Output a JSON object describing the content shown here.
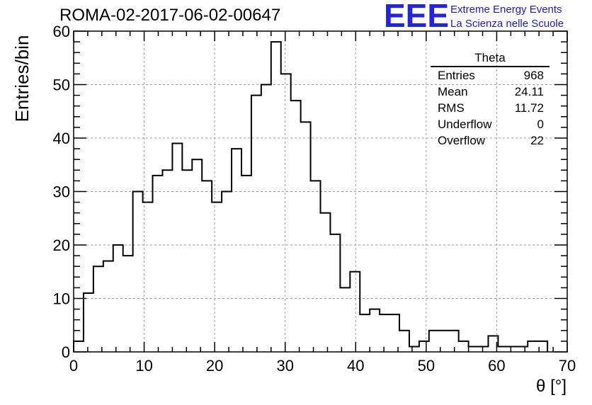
{
  "header": {
    "title": "ROMA-02-2017-06-02-00647",
    "logo_mark": "EEE",
    "logo_line1": "Extreme Energy Events",
    "logo_line2": "La Scienza nelle Scuole"
  },
  "stats": {
    "title": "Theta",
    "rows": [
      {
        "label": "Entries",
        "value": "968"
      },
      {
        "label": "Mean",
        "value": "24.11"
      },
      {
        "label": "RMS",
        "value": "11.72"
      },
      {
        "label": "Underflow",
        "value": "0"
      },
      {
        "label": "Overflow",
        "value": "22"
      }
    ]
  },
  "chart_data": {
    "type": "histogram",
    "xlabel": "θ [°]",
    "ylabel": "Entries/bin",
    "xlim": [
      0,
      70
    ],
    "ylim": [
      0,
      60
    ],
    "bin_width": 1.4,
    "bin_edges_start": 0,
    "values": [
      2,
      11,
      16,
      17,
      20,
      18,
      30,
      28,
      33,
      34,
      39,
      34,
      36,
      32,
      28,
      30,
      38,
      33,
      48,
      50,
      58,
      52,
      47,
      43,
      32,
      26,
      22,
      12,
      15,
      7,
      8,
      7,
      7,
      4,
      1,
      2,
      4,
      4,
      4,
      2,
      1,
      1,
      3,
      1,
      1,
      1,
      2,
      2
    ],
    "x_ticks": [
      0,
      10,
      20,
      30,
      40,
      50,
      60,
      70
    ],
    "y_ticks": [
      0,
      10,
      20,
      30,
      40,
      50,
      60
    ],
    "grid": true,
    "colors": {
      "line": "#000000",
      "grid": "#a0a0a0",
      "logo": "#2424e0"
    }
  }
}
